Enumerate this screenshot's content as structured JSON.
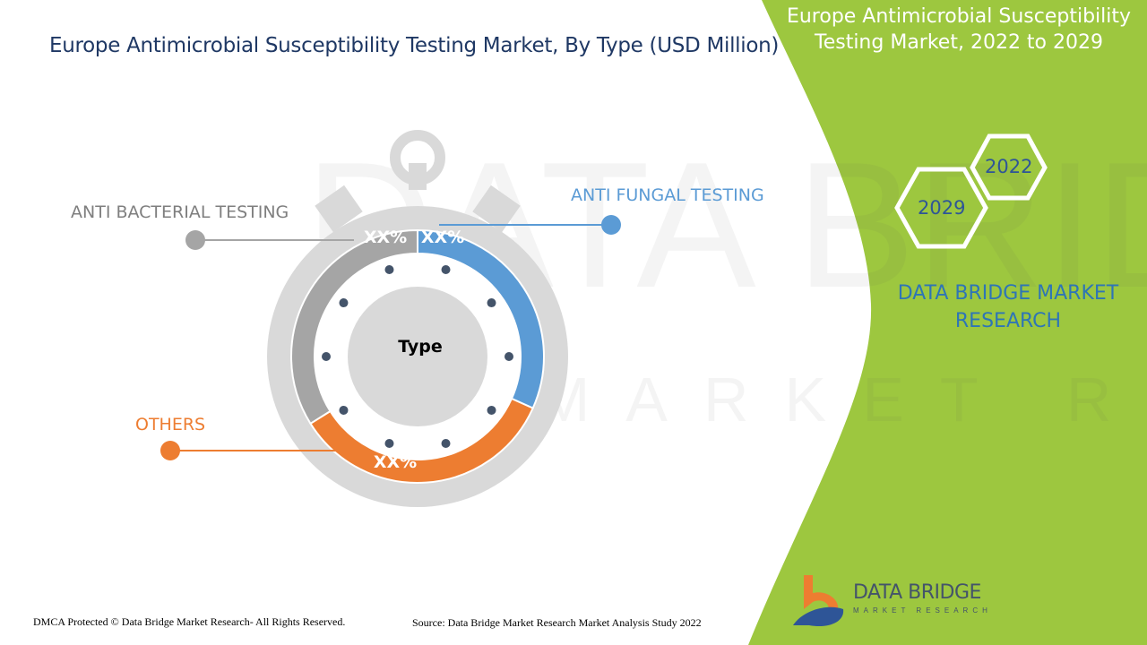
{
  "title": "Europe Antimicrobial Susceptibility Testing Market, By Type (USD Million)",
  "side_panel": {
    "title": "Europe Antimicrobial Susceptibility Testing Market, 2022 to 2029",
    "year_start": "2022",
    "year_end": "2029",
    "brand": "DATA BRIDGE MARKET RESEARCH",
    "accent_color": "#9dc73f"
  },
  "logo": {
    "name": "DATA BRIDGE",
    "tagline": "MARKET RESEARCH"
  },
  "footer": {
    "copyright": "DMCA Protected © Data Bridge Market Research- All Rights Reserved.",
    "source": "Source: Data Bridge Market Research Market Analysis Study 2022"
  },
  "chart_data": {
    "type": "pie",
    "style": "donut (stopwatch)",
    "center_label": "Type",
    "categories": [
      "ANTI FUNGAL TESTING",
      "OTHERS",
      "ANTI BACTERIAL TESTING"
    ],
    "values": [
      31.7,
      34.4,
      33.9
    ],
    "data_labels": [
      "XX%",
      "XX%",
      "XX%"
    ],
    "colors": [
      "#5b9bd5",
      "#ed7d31",
      "#a5a5a5"
    ],
    "legend": "callouts"
  }
}
